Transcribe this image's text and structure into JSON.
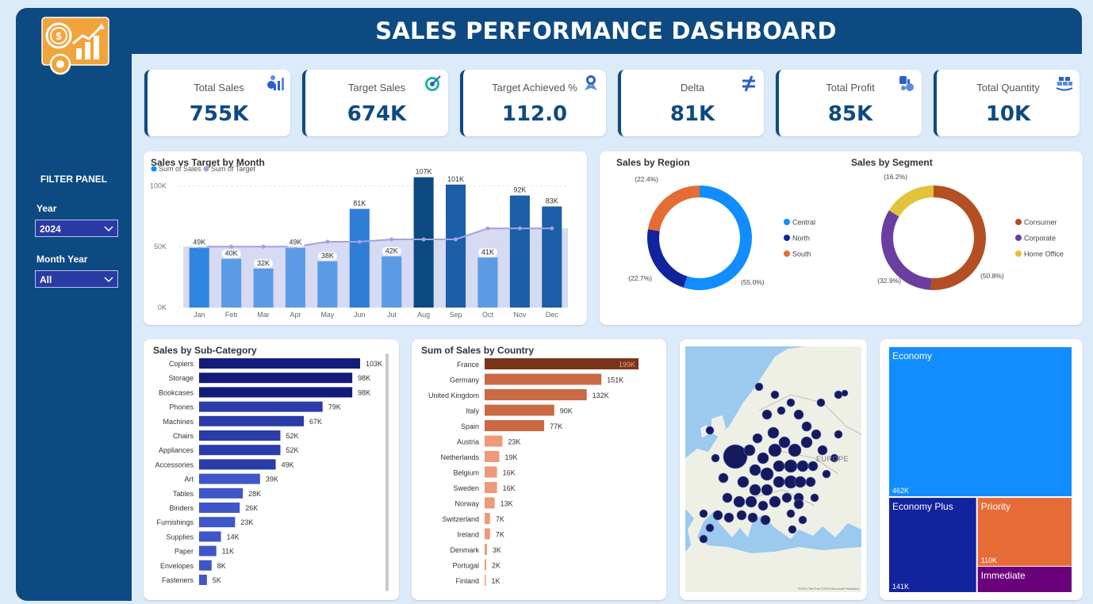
{
  "header": {
    "title": "SALES PERFORMANCE DASHBOARD"
  },
  "filters": {
    "title": "FILTER PANEL",
    "year_label": "Year",
    "year_value": "2024",
    "month_label": "Month Year",
    "month_value": "All"
  },
  "kpis": [
    {
      "label": "Total Sales",
      "value": "755K",
      "icon": "sales-chart-icon"
    },
    {
      "label": "Target Sales",
      "value": "674K",
      "icon": "target-icon"
    },
    {
      "label": "Target Achieved %",
      "value": "112.0",
      "icon": "award-icon"
    },
    {
      "label": "Delta",
      "value": "81K",
      "icon": "not-equal-icon"
    },
    {
      "label": "Total Profit",
      "value": "85K",
      "icon": "profit-icon"
    },
    {
      "label": "Total Quantity",
      "value": "10K",
      "icon": "quantity-icon"
    }
  ],
  "chart_data": [
    {
      "id": "sales_vs_target",
      "type": "bar",
      "title": "Sales vs Target by Month",
      "legend": [
        "Sum of Sales",
        "Sum of Target"
      ],
      "legend_position": "top-left",
      "categories": [
        "Jan",
        "Feb",
        "Mar",
        "Apr",
        "May",
        "Jun",
        "Jul",
        "Aug",
        "Sep",
        "Oct",
        "Nov",
        "Dec"
      ],
      "series": [
        {
          "name": "Sum of Sales",
          "values": [
            49,
            40,
            32,
            49,
            38,
            81,
            42,
            107,
            101,
            41,
            92,
            83
          ]
        },
        {
          "name": "Sum of Target",
          "values": [
            50,
            50,
            50,
            50,
            54,
            54,
            56,
            56,
            56,
            65,
            65,
            65
          ]
        }
      ],
      "data_labels": [
        "49K",
        "40K",
        "32K",
        "49K",
        "38K",
        "81K",
        "42K",
        "107K",
        "101K",
        "41K",
        "92K",
        "83K"
      ],
      "bar_colors": [
        "#2f85e0",
        "#5b9be5",
        "#5b9be5",
        "#5b9be5",
        "#5b9be5",
        "#2f7dd6",
        "#5b9be5",
        "#0d4a82",
        "#1a5fa7",
        "#5b9be5",
        "#1a5fa7",
        "#1a5fa7"
      ],
      "yticks": [
        "0K",
        "50K",
        "100K"
      ],
      "ylim": [
        0,
        110
      ],
      "grid": true
    },
    {
      "id": "sales_by_region",
      "type": "pie",
      "title": "Sales by Region",
      "categories": [
        "Central",
        "North",
        "South"
      ],
      "values": [
        55.0,
        22.7,
        22.4
      ],
      "labels": [
        "(55.0%)",
        "(22.7%)",
        "(22.4%)"
      ],
      "colors": [
        "#118dff",
        "#12239e",
        "#e66c37"
      ],
      "legend_position": "right"
    },
    {
      "id": "sales_by_segment",
      "type": "pie",
      "title": "Sales by Segment",
      "categories": [
        "Consumer",
        "Corporate",
        "Home Office"
      ],
      "values": [
        50.8,
        32.9,
        16.2
      ],
      "labels": [
        "(50.8%)",
        "(32.9%)",
        "(16.2%)"
      ],
      "colors": [
        "#b34f22",
        "#6b3fa0",
        "#e3c33a"
      ],
      "legend_position": "right"
    },
    {
      "id": "sales_by_subcategory",
      "type": "bar",
      "title": "Sales by Sub-Category",
      "orientation": "horizontal",
      "categories": [
        "Copiers",
        "Storage",
        "Bookcases",
        "Phones",
        "Machines",
        "Chairs",
        "Appliances",
        "Accessories",
        "Art",
        "Tables",
        "Binders",
        "Furnishings",
        "Supplies",
        "Paper",
        "Envelopes",
        "Fasteners"
      ],
      "values": [
        103,
        98,
        98,
        79,
        67,
        52,
        52,
        49,
        39,
        28,
        26,
        23,
        14,
        11,
        8,
        5
      ],
      "data_labels": [
        "103K",
        "98K",
        "98K",
        "79K",
        "67K",
        "52K",
        "52K",
        "49K",
        "39K",
        "28K",
        "26K",
        "23K",
        "14K",
        "11K",
        "8K",
        "5K"
      ],
      "colors": [
        "#141c7a",
        "#2a3ca8",
        "#3e56c8"
      ]
    },
    {
      "id": "sales_by_country",
      "type": "bar",
      "title": "Sum of Sales by Country",
      "orientation": "horizontal",
      "categories": [
        "France",
        "Germany",
        "United Kingdom",
        "Italy",
        "Spain",
        "Austria",
        "Netherlands",
        "Belgium",
        "Sweden",
        "Norway",
        "Switzerland",
        "Ireland",
        "Denmark",
        "Portugal",
        "Finland"
      ],
      "values": [
        199,
        151,
        132,
        90,
        77,
        23,
        19,
        16,
        16,
        13,
        7,
        7,
        3,
        2,
        1
      ],
      "data_labels": [
        "199K",
        "151K",
        "132K",
        "90K",
        "77K",
        "23K",
        "19K",
        "16K",
        "16K",
        "13K",
        "7K",
        "7K",
        "3K",
        "2K",
        "1K"
      ],
      "colors": [
        "#7a3418",
        "#c96a45",
        "#ec9a77"
      ]
    },
    {
      "id": "sales_by_ship_mode",
      "type": "heatmap",
      "title": "",
      "categories": [
        "Economy",
        "Economy Plus",
        "Priority",
        "Immediate"
      ],
      "values": [
        462,
        141,
        110,
        42
      ],
      "labels": [
        "462K",
        "141K",
        "110K",
        ""
      ],
      "colors": [
        "#118dff",
        "#12239e",
        "#e66c37",
        "#6b007b"
      ]
    }
  ],
  "map": {
    "label": "EUROPE",
    "copyright": "©2024 TomTom ©2024 Microsoft Feedback"
  }
}
